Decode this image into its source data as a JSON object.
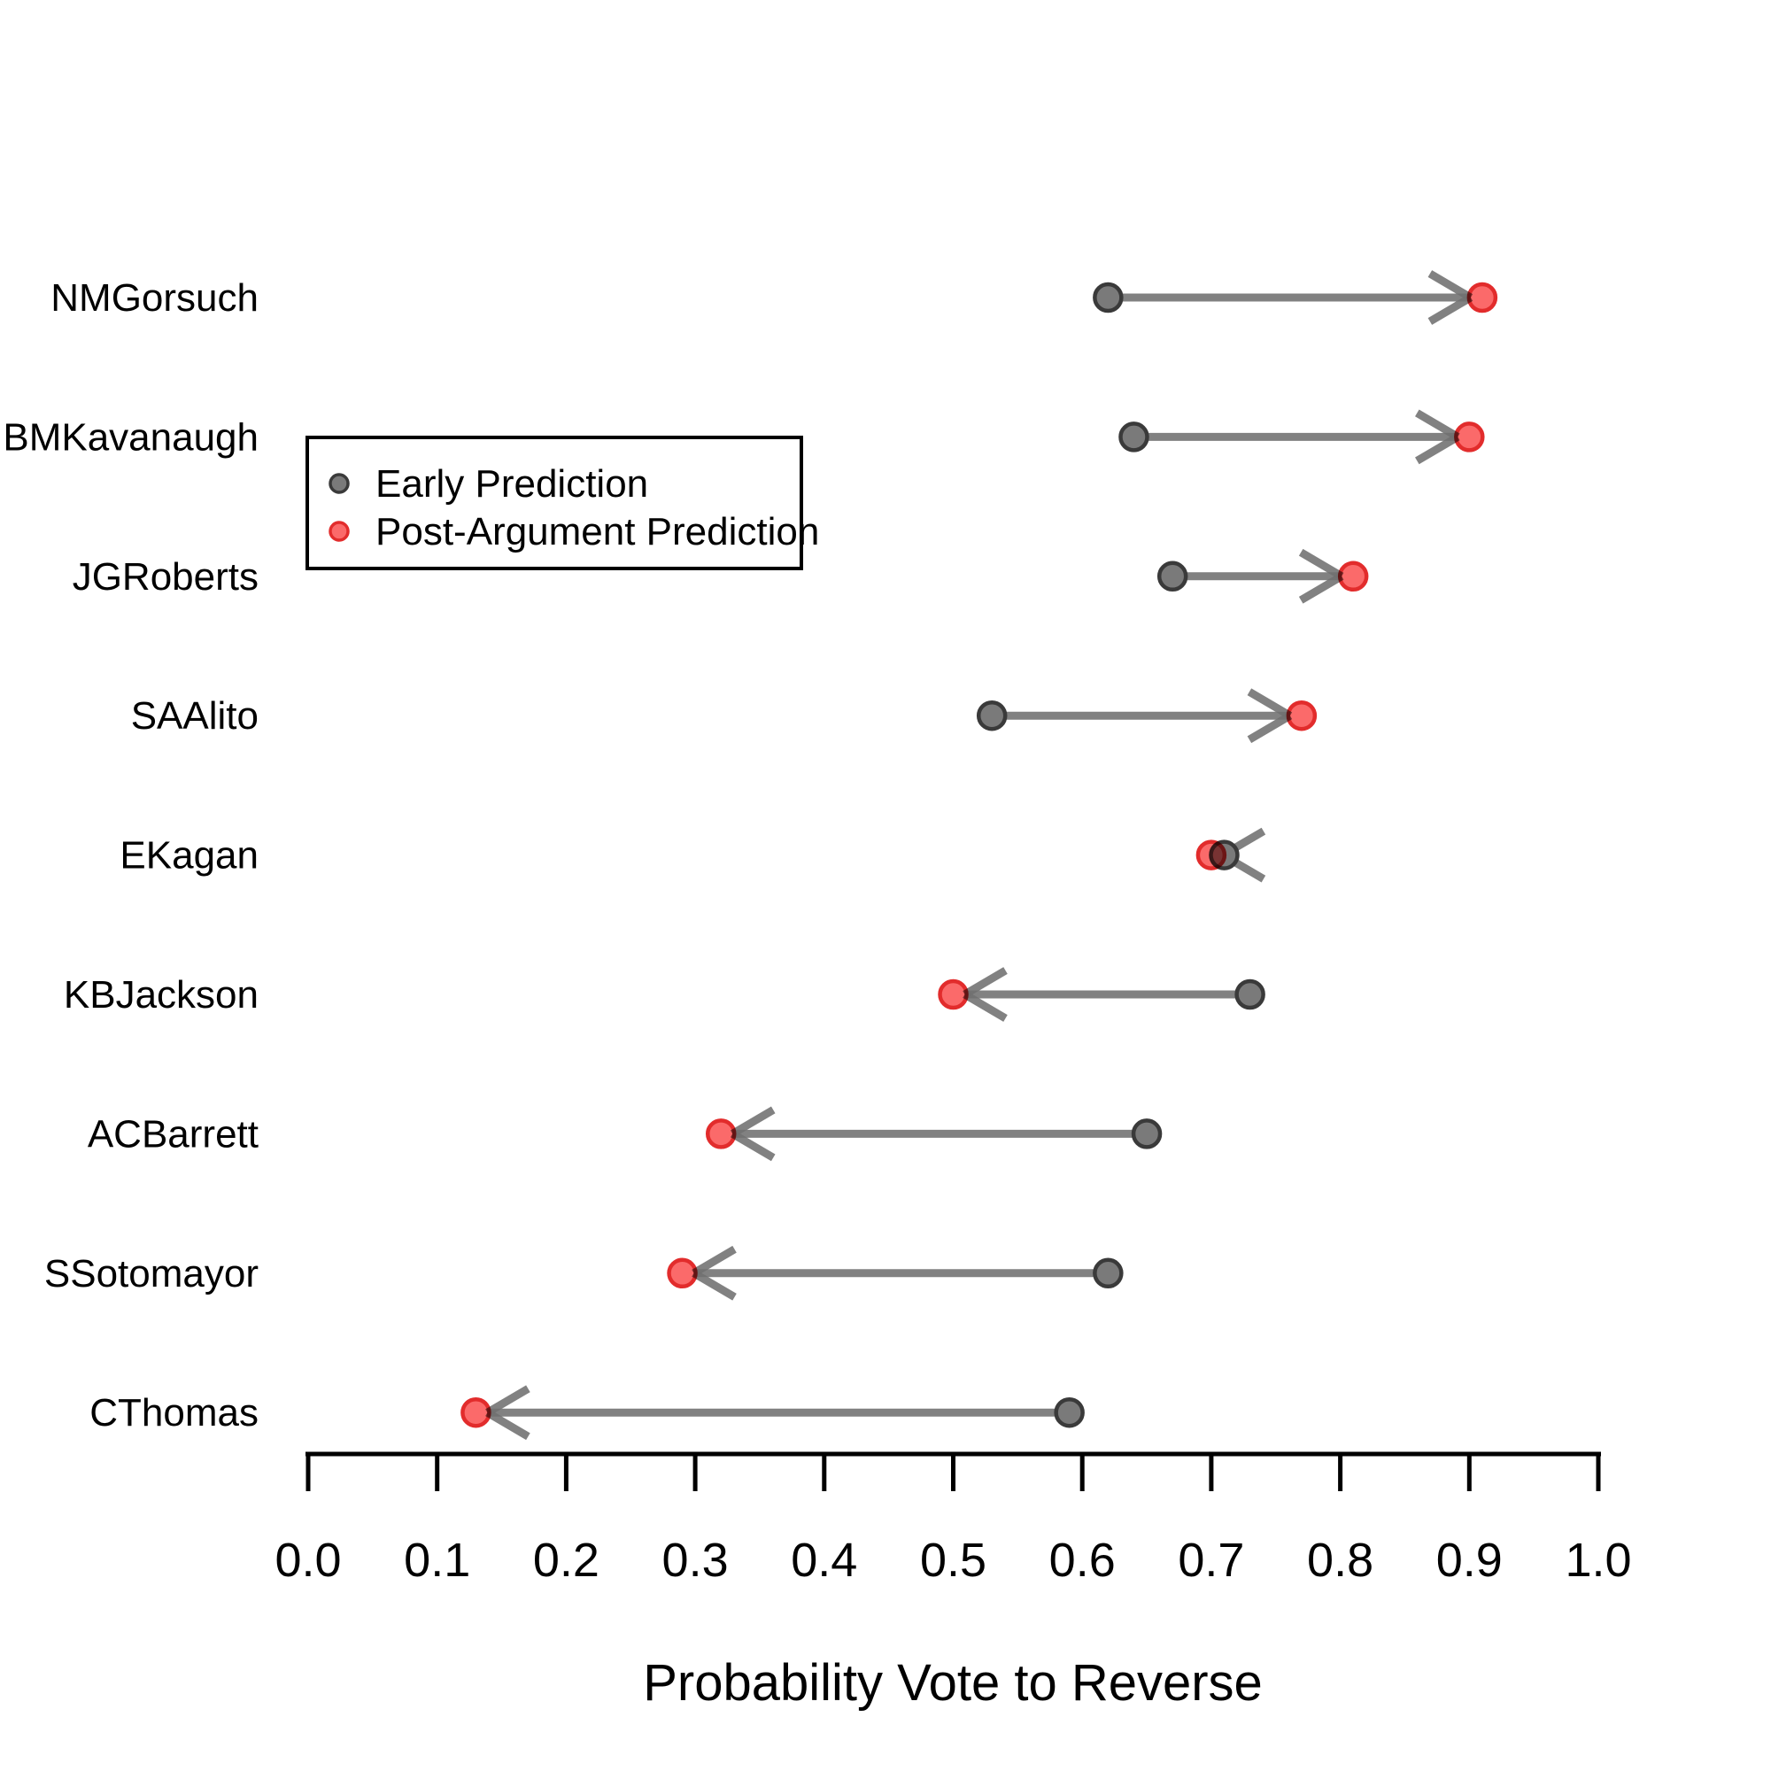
{
  "chart_data": {
    "type": "dumbbell-arrow",
    "title": "",
    "xlabel": "Probability Vote to Reverse",
    "ylabel": "",
    "xlim": [
      0.0,
      1.0
    ],
    "x_ticks": [
      "0.0",
      "0.1",
      "0.2",
      "0.3",
      "0.4",
      "0.5",
      "0.6",
      "0.7",
      "0.8",
      "0.9",
      "1.0"
    ],
    "grid": "off",
    "categories": [
      "NMGorsuch",
      "BMKavanaugh",
      "JGRoberts",
      "SAAlito",
      "EKagan",
      "KBJackson",
      "ACBarrett",
      "SSotomayor",
      "CThomas"
    ],
    "series": [
      {
        "name": "Early Prediction",
        "values": [
          0.62,
          0.64,
          0.67,
          0.53,
          0.71,
          0.73,
          0.65,
          0.62,
          0.59
        ]
      },
      {
        "name": "Post-Argument Prediction",
        "values": [
          0.91,
          0.9,
          0.81,
          0.77,
          0.7,
          0.5,
          0.32,
          0.29,
          0.13
        ]
      }
    ],
    "arrows": "from early prediction toward post-argument prediction",
    "legend_position": "upper-left-inside",
    "colors": {
      "early_fill": "#7a7a7a",
      "early_stroke": "#3a3a3a",
      "post_fill": "#fb6a6a",
      "post_stroke": "#e22c2c",
      "arrow": "#6f6f6f",
      "axis": "#000000",
      "background": "#ffffff"
    }
  }
}
